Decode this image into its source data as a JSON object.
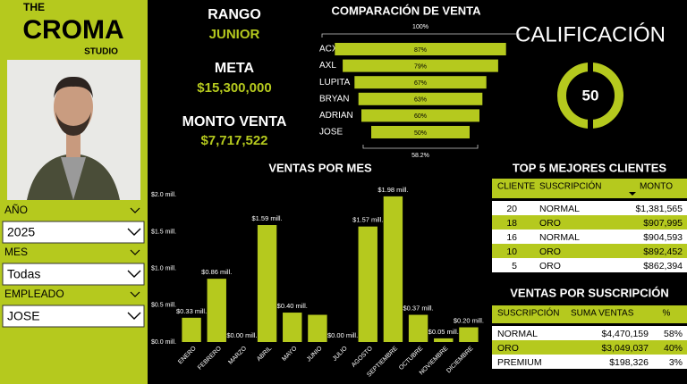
{
  "logo": {
    "top": "THE",
    "main": "CROMA",
    "bottom": "STUDIO"
  },
  "filters": [
    {
      "label": "AÑO",
      "value": "2025"
    },
    {
      "label": "MES",
      "value": "Todas"
    },
    {
      "label": "EMPLEADO",
      "value": "JOSE"
    }
  ],
  "kpis": {
    "rango_label": "RANGO",
    "rango": "JUNIOR",
    "meta_label": "META",
    "meta": "$15,300,000",
    "monto_label": "MONTO VENTA",
    "monto": "$7,717,522",
    "calificacion_label": "CALIFICACIÓN",
    "calificacion": "50"
  },
  "chart_data": [
    {
      "type": "funnel",
      "title": "COMPARACIÓN DE VENTA",
      "color": "#b5c91e",
      "categories": [
        "ACXEL",
        "AXL",
        "LUPITA",
        "BRYAN",
        "ADRIAN",
        "JOSE"
      ],
      "values": [
        87,
        79,
        67,
        63,
        60,
        50
      ],
      "value_labels": [
        "87%",
        "79%",
        "67%",
        "63%",
        "60%",
        "50%"
      ],
      "top_reference": {
        "value": 100,
        "label": "100%"
      },
      "bottom_reference": {
        "value": 58.2,
        "label": "58.2%"
      }
    },
    {
      "type": "bar",
      "title": "VENTAS POR MES",
      "color": "#b5c91e",
      "categories": [
        "ENERO",
        "FEBRERO",
        "MARZO",
        "ABRIL",
        "MAYO",
        "JUNIO",
        "JULIO",
        "AGOSTO",
        "SEPTIEMBRE",
        "OCTUBRE",
        "NOVIEMBRE",
        "DICIEMBRE"
      ],
      "values": [
        0.33,
        0.86,
        0,
        1.59,
        0.4,
        0.37,
        0,
        1.57,
        1.98,
        0.37,
        0.05,
        0.2
      ],
      "value_labels": [
        "$0.33 mill.",
        "$0.86 mill.",
        "$0.00 mill.",
        "$1.59 mill.",
        "$0.40 mill.",
        null,
        "$0.00 mill.",
        "$1.57 mill.",
        "$1.98 mill.",
        "$0.37 mill.",
        "$0.05 mill.",
        "$0.20 mill."
      ],
      "ylim": [
        0,
        2.1
      ],
      "yticks": [
        {
          "value": 0,
          "label": "$0.0 mill."
        },
        {
          "value": 0.5,
          "label": "$0.5 mill."
        },
        {
          "value": 1,
          "label": "$1.0 mill."
        },
        {
          "value": 1.5,
          "label": "$1.5 mill."
        },
        {
          "value": 2,
          "label": "$2.0 mill."
        }
      ]
    }
  ],
  "tables": [
    {
      "title": "TOP 5 MEJORES CLIENTES",
      "columns": [
        "CLIENTE",
        "SUSCRIPCIÓN",
        "MONTO"
      ],
      "rows": [
        [
          "20",
          "NORMAL",
          "$1,381,565"
        ],
        [
          "18",
          "ORO",
          "$907,995"
        ],
        [
          "16",
          "NORMAL",
          "$904,593"
        ],
        [
          "10",
          "ORO",
          "$892,452"
        ],
        [
          "5",
          "ORO",
          "$862,394"
        ]
      ]
    },
    {
      "title": "VENTAS POR SUSCRIPCIÓN",
      "columns": [
        "SUSCRIPCIÓN",
        "SUMA VENTAS",
        "%"
      ],
      "rows": [
        [
          "NORMAL",
          "$4,470,159",
          "58%"
        ],
        [
          "ORO",
          "$3,049,037",
          "40%"
        ],
        [
          "PREMIUM",
          "$198,326",
          "3%"
        ]
      ]
    }
  ]
}
